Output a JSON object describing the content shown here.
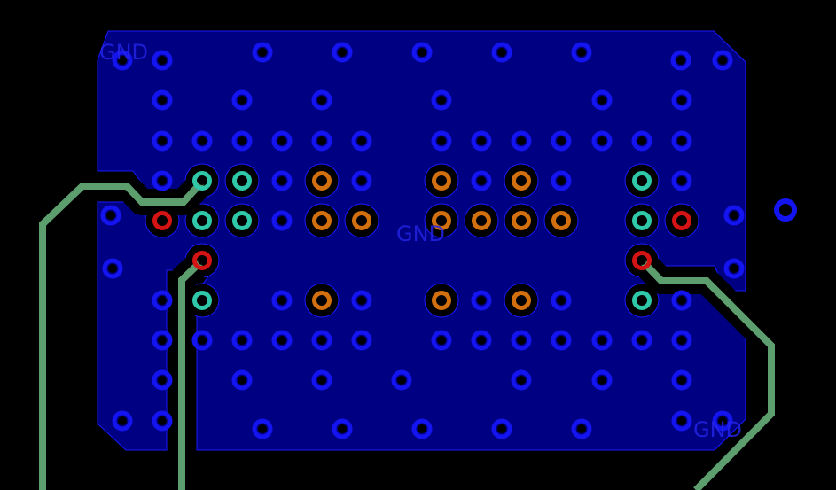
{
  "board": {
    "net_labels": [
      "GND",
      "GND",
      "GND"
    ],
    "colors": {
      "background": "#000000",
      "copper_pour": "#000082",
      "pour_outline": "#1a1aff",
      "via": "#1414f0",
      "pad_orange": "#d2700f",
      "pad_teal": "#2fc8a8",
      "pad_red": "#d41414",
      "trace": "#5c9e6e",
      "label": "#2424e6"
    }
  }
}
